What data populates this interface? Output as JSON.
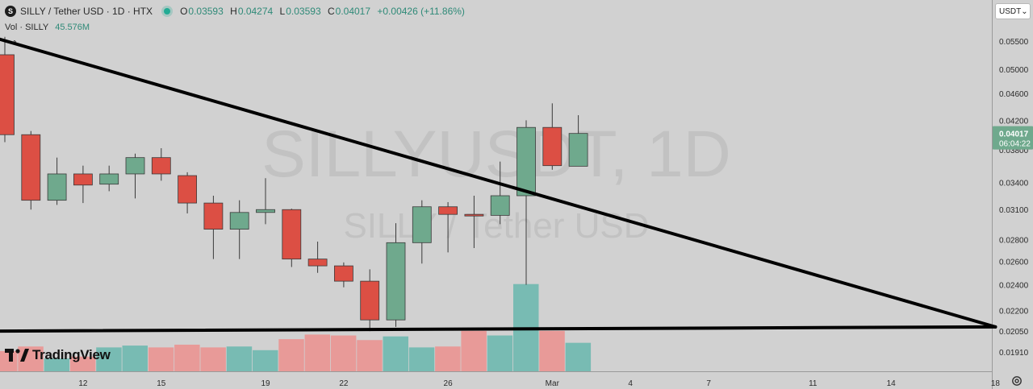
{
  "header": {
    "coin_badge": "S",
    "title": "SILLY / Tether USD · 1D · HTX",
    "ohlc": {
      "o_label": "O",
      "o": "0.03593",
      "h_label": "H",
      "h": "0.04274",
      "l_label": "L",
      "l": "0.03593",
      "c_label": "C",
      "c": "0.04017",
      "change": "+0.00426 (+11.86%)"
    },
    "live_color": "#22ab94"
  },
  "volume_legend": {
    "label": "Vol · SILLY",
    "value": "45.576M"
  },
  "quote_select": {
    "value": "USDT",
    "icon": "chevron-down-icon"
  },
  "watermark": {
    "line1": "SILLYUSDT, 1D",
    "line2": "SILLY / Tether USD"
  },
  "branding": {
    "name": "TradingView"
  },
  "colors": {
    "up": "#6fa98d",
    "down": "#dc4f44",
    "vol_up": "#78bbb3",
    "vol_down": "#e89a98",
    "price_tag": "#6fa98d",
    "trendline": "#000000",
    "background": "#d1d1d1"
  },
  "chart_data": {
    "type": "candlestick",
    "y_axis": {
      "scale": "log",
      "ticks": [
        "0.05500",
        "0.05000",
        "0.04600",
        "0.04200",
        "0.03800",
        "0.03400",
        "0.03100",
        "0.02800",
        "0.02600",
        "0.02400",
        "0.02200",
        "0.02050",
        "0.01910"
      ]
    },
    "x_axis": {
      "ticks": [
        {
          "label": "12",
          "day": "2024-02-12"
        },
        {
          "label": "15",
          "day": "2024-02-15"
        },
        {
          "label": "19",
          "day": "2024-02-19"
        },
        {
          "label": "22",
          "day": "2024-02-22"
        },
        {
          "label": "26",
          "day": "2024-02-26"
        },
        {
          "label": "Mar",
          "day": "2024-03-01"
        },
        {
          "label": "4",
          "day": "2024-03-04"
        },
        {
          "label": "7",
          "day": "2024-03-07"
        },
        {
          "label": "11",
          "day": "2024-03-11"
        },
        {
          "label": "14",
          "day": "2024-03-14"
        },
        {
          "label": "18",
          "day": "2024-03-18"
        }
      ]
    },
    "last_price": {
      "value": "0.04017",
      "countdown": "06:04:22"
    },
    "candles": [
      {
        "day": "2024-02-09",
        "o": 0.0525,
        "h": 0.0558,
        "l": 0.039,
        "c": 0.04
      },
      {
        "day": "2024-02-10",
        "o": 0.04,
        "h": 0.0405,
        "l": 0.031,
        "c": 0.032
      },
      {
        "day": "2024-02-11",
        "o": 0.032,
        "h": 0.037,
        "l": 0.0315,
        "c": 0.035
      },
      {
        "day": "2024-02-12",
        "o": 0.035,
        "h": 0.036,
        "l": 0.0317,
        "c": 0.0337
      },
      {
        "day": "2024-02-13",
        "o": 0.0338,
        "h": 0.036,
        "l": 0.033,
        "c": 0.035
      },
      {
        "day": "2024-02-14",
        "o": 0.035,
        "h": 0.0375,
        "l": 0.0322,
        "c": 0.037
      },
      {
        "day": "2024-02-15",
        "o": 0.037,
        "h": 0.0382,
        "l": 0.0342,
        "c": 0.035
      },
      {
        "day": "2024-02-16",
        "o": 0.0348,
        "h": 0.0352,
        "l": 0.0306,
        "c": 0.0317
      },
      {
        "day": "2024-02-17",
        "o": 0.0317,
        "h": 0.0325,
        "l": 0.0262,
        "c": 0.029
      },
      {
        "day": "2024-02-18",
        "o": 0.029,
        "h": 0.032,
        "l": 0.0262,
        "c": 0.0307
      },
      {
        "day": "2024-02-19",
        "o": 0.0307,
        "h": 0.0345,
        "l": 0.0295,
        "c": 0.031
      },
      {
        "day": "2024-02-20",
        "o": 0.031,
        "h": 0.0311,
        "l": 0.0255,
        "c": 0.0262
      },
      {
        "day": "2024-02-21",
        "o": 0.0262,
        "h": 0.0278,
        "l": 0.025,
        "c": 0.0256
      },
      {
        "day": "2024-02-22",
        "o": 0.0256,
        "h": 0.0259,
        "l": 0.0238,
        "c": 0.0243
      },
      {
        "day": "2024-02-23",
        "o": 0.0243,
        "h": 0.0253,
        "l": 0.0205,
        "c": 0.0213
      },
      {
        "day": "2024-02-24",
        "o": 0.0213,
        "h": 0.0296,
        "l": 0.0208,
        "c": 0.0277
      },
      {
        "day": "2024-02-25",
        "o": 0.0277,
        "h": 0.032,
        "l": 0.0258,
        "c": 0.0313
      },
      {
        "day": "2024-02-26",
        "o": 0.0313,
        "h": 0.0318,
        "l": 0.0268,
        "c": 0.0305
      },
      {
        "day": "2024-02-27",
        "o": 0.0305,
        "h": 0.0325,
        "l": 0.0272,
        "c": 0.0304
      },
      {
        "day": "2024-02-28",
        "o": 0.0304,
        "h": 0.0365,
        "l": 0.0295,
        "c": 0.0325
      },
      {
        "day": "2024-02-29",
        "o": 0.0325,
        "h": 0.042,
        "l": 0.024,
        "c": 0.041
      },
      {
        "day": "2024-03-01",
        "o": 0.041,
        "h": 0.0445,
        "l": 0.0355,
        "c": 0.036
      },
      {
        "day": "2024-03-02",
        "o": 0.03593,
        "h": 0.04274,
        "l": 0.03593,
        "c": 0.04017
      }
    ],
    "volume": {
      "label": "Vol · SILLY",
      "last": "45.576M",
      "bars": [
        {
          "day": "2024-02-09",
          "dir": "down",
          "level": 0.22
        },
        {
          "day": "2024-02-10",
          "dir": "down",
          "level": 0.27
        },
        {
          "day": "2024-02-11",
          "dir": "up",
          "level": 0.14
        },
        {
          "day": "2024-02-12",
          "dir": "down",
          "level": 0.16
        },
        {
          "day": "2024-02-13",
          "dir": "up",
          "level": 0.26
        },
        {
          "day": "2024-02-14",
          "dir": "up",
          "level": 0.28
        },
        {
          "day": "2024-02-15",
          "dir": "down",
          "level": 0.26
        },
        {
          "day": "2024-02-16",
          "dir": "down",
          "level": 0.29
        },
        {
          "day": "2024-02-17",
          "dir": "down",
          "level": 0.26
        },
        {
          "day": "2024-02-18",
          "dir": "up",
          "level": 0.27
        },
        {
          "day": "2024-02-19",
          "dir": "up",
          "level": 0.23
        },
        {
          "day": "2024-02-20",
          "dir": "down",
          "level": 0.35
        },
        {
          "day": "2024-02-21",
          "dir": "down",
          "level": 0.4
        },
        {
          "day": "2024-02-22",
          "dir": "down",
          "level": 0.39
        },
        {
          "day": "2024-02-23",
          "dir": "down",
          "level": 0.34
        },
        {
          "day": "2024-02-24",
          "dir": "up",
          "level": 0.38
        },
        {
          "day": "2024-02-25",
          "dir": "up",
          "level": 0.26
        },
        {
          "day": "2024-02-26",
          "dir": "down",
          "level": 0.27
        },
        {
          "day": "2024-02-27",
          "dir": "down",
          "level": 0.44
        },
        {
          "day": "2024-02-28",
          "dir": "up",
          "level": 0.39
        },
        {
          "day": "2024-02-29",
          "dir": "up",
          "level": 0.95
        },
        {
          "day": "2024-03-01",
          "dir": "down",
          "level": 0.44
        },
        {
          "day": "2024-03-02",
          "dir": "up",
          "level": 0.31
        }
      ]
    },
    "trendlines": [
      {
        "from": {
          "day": "2024-02-08",
          "price": 0.0565
        },
        "to": {
          "day": "2024-03-18",
          "price": 0.0208
        }
      },
      {
        "from": {
          "day": "2024-02-08",
          "price": 0.0205
        },
        "to": {
          "day": "2024-03-18",
          "price": 0.0208
        }
      }
    ]
  }
}
